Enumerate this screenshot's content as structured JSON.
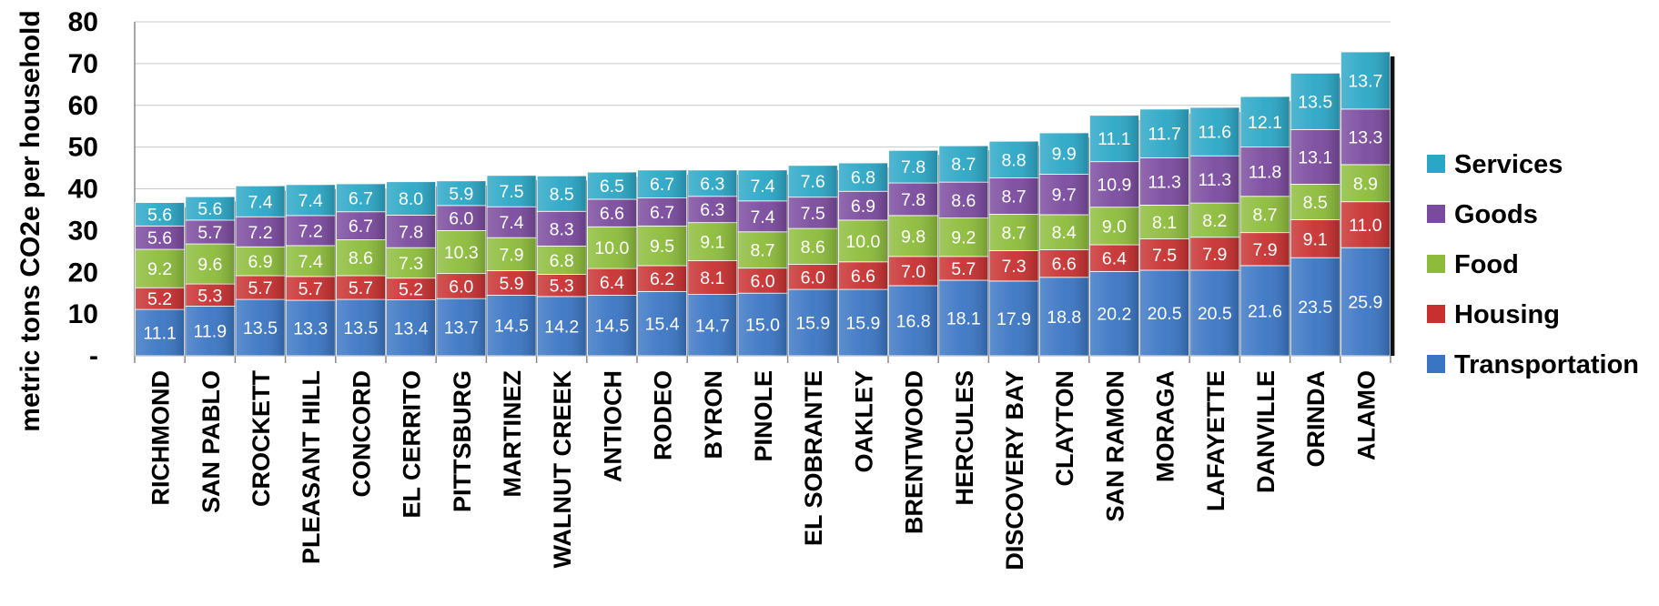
{
  "chart_data": {
    "type": "bar",
    "stacked": true,
    "ylabel": "metric tons CO2e  per household",
    "xlabel": "",
    "ylim": [
      0,
      80
    ],
    "yticks": [
      "-",
      "10",
      "20",
      "30",
      "40",
      "50",
      "60",
      "70",
      "80"
    ],
    "grid": true,
    "legend_position": "right",
    "categories": [
      "RICHMOND",
      "SAN PABLO",
      "CROCKETT",
      "PLEASANT HILL",
      "CONCORD",
      "EL CERRITO",
      "PITTSBURG",
      "MARTINEZ",
      "WALNUT CREEK",
      "ANTIOCH",
      "RODEO",
      "BYRON",
      "PINOLE",
      "EL SOBRANTE",
      "OAKLEY",
      "BRENTWOOD",
      "HERCULES",
      "DISCOVERY BAY",
      "CLAYTON",
      "SAN RAMON",
      "MORAGA",
      "LAFAYETTE",
      "DANVILLE",
      "ORINDA",
      "ALAMO"
    ],
    "series": [
      {
        "name": "Transportation",
        "color": "#3a75c4",
        "values": [
          11.1,
          11.9,
          13.5,
          13.3,
          13.5,
          13.4,
          13.7,
          14.5,
          14.2,
          14.5,
          15.4,
          14.7,
          15.0,
          15.9,
          15.9,
          16.8,
          18.1,
          17.9,
          18.8,
          20.2,
          20.5,
          20.5,
          21.6,
          23.5,
          25.9
        ]
      },
      {
        "name": "Housing",
        "color": "#c83030",
        "values": [
          5.2,
          5.3,
          5.7,
          5.7,
          5.7,
          5.2,
          6.0,
          5.9,
          5.3,
          6.4,
          6.2,
          8.1,
          6.0,
          6.0,
          6.6,
          7.0,
          5.7,
          7.3,
          6.6,
          6.4,
          7.5,
          7.9,
          7.9,
          9.1,
          11.0
        ]
      },
      {
        "name": "Food",
        "color": "#8cbc3a",
        "values": [
          9.2,
          9.6,
          6.9,
          7.4,
          8.6,
          7.3,
          10.3,
          7.9,
          6.8,
          10.0,
          9.5,
          9.1,
          8.7,
          8.6,
          10.0,
          9.8,
          9.2,
          8.7,
          8.4,
          9.0,
          8.1,
          8.2,
          8.7,
          8.5,
          8.9
        ]
      },
      {
        "name": "Goods",
        "color": "#7a4a9e",
        "values": [
          5.6,
          5.7,
          7.2,
          7.2,
          6.7,
          7.8,
          6.0,
          7.4,
          8.3,
          6.6,
          6.7,
          6.3,
          7.4,
          7.5,
          6.9,
          7.8,
          8.6,
          8.7,
          9.7,
          10.9,
          11.3,
          11.3,
          11.8,
          13.1,
          13.3
        ]
      },
      {
        "name": "Services",
        "color": "#2aa7c6",
        "values": [
          5.6,
          5.6,
          7.4,
          7.4,
          6.7,
          8.0,
          5.9,
          7.5,
          8.5,
          6.5,
          6.7,
          6.3,
          7.4,
          7.6,
          6.8,
          7.8,
          8.7,
          8.8,
          9.9,
          11.1,
          11.7,
          11.6,
          12.1,
          13.5,
          13.7
        ]
      }
    ]
  }
}
